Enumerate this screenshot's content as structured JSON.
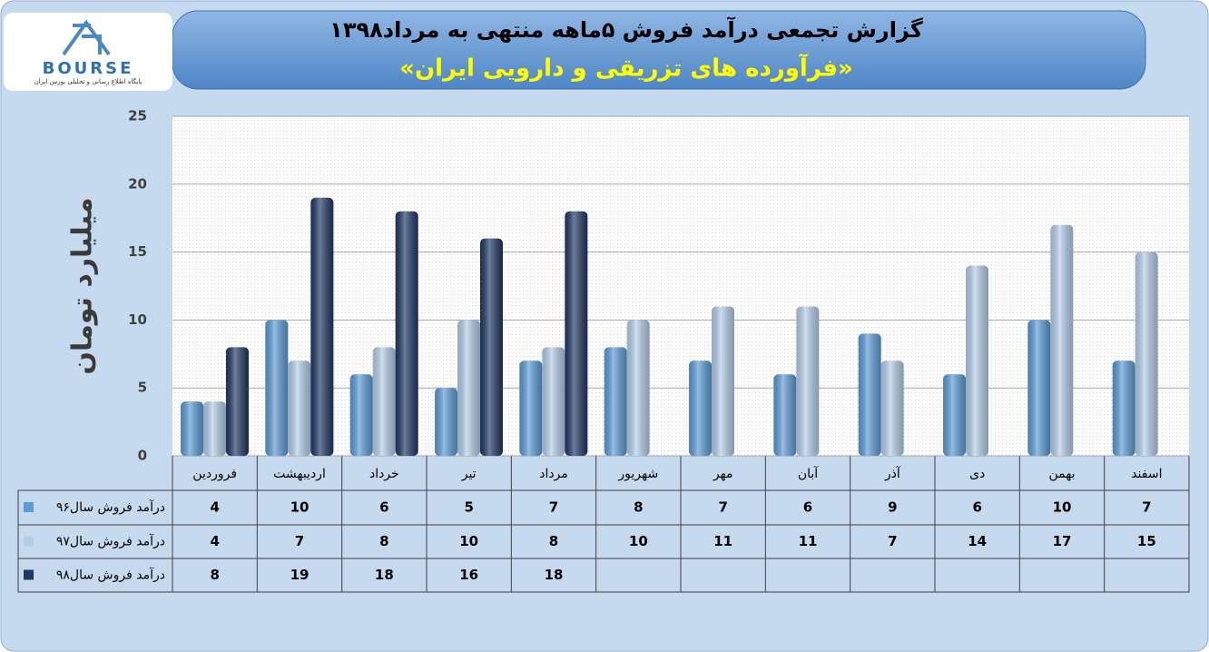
{
  "logo": {
    "name": "BOURSE",
    "tagline": "پایگاه اطلاع رسانی و تحلیلی بورس ایران"
  },
  "chart_data": {
    "type": "bar",
    "title": "گزارش تجمعی درآمد فروش ۵ماهه منتهی به مرداد۱۳۹۸",
    "subtitle": "«فرآورده های تزریقی و دارویی ایران»",
    "y_label": "میلیارد تومان",
    "categories": [
      "فروردین",
      "اردیبهشت",
      "خرداد",
      "تیر",
      "مرداد",
      "شهریور",
      "مهر",
      "آبان",
      "آذر",
      "دی",
      "بهمن",
      "اسفند"
    ],
    "series": [
      {
        "name": "درآمد فروش سال۹۶",
        "color": "#5b9bd5",
        "values": [
          4,
          10,
          6,
          5,
          7,
          8,
          7,
          6,
          9,
          6,
          10,
          7
        ]
      },
      {
        "name": "درآمد فروش سال۹۷",
        "color": "#b4cde9",
        "values": [
          4,
          7,
          8,
          10,
          8,
          10,
          11,
          11,
          7,
          14,
          17,
          15
        ]
      },
      {
        "name": "درآمد فروش سال۹۸",
        "color": "#1f3864",
        "values": [
          8,
          19,
          18,
          16,
          18,
          null,
          null,
          null,
          null,
          null,
          null,
          null
        ]
      }
    ],
    "ylim": [
      0,
      25
    ],
    "yticks": [
      0,
      5,
      10,
      15,
      20,
      25
    ],
    "grid": true
  }
}
